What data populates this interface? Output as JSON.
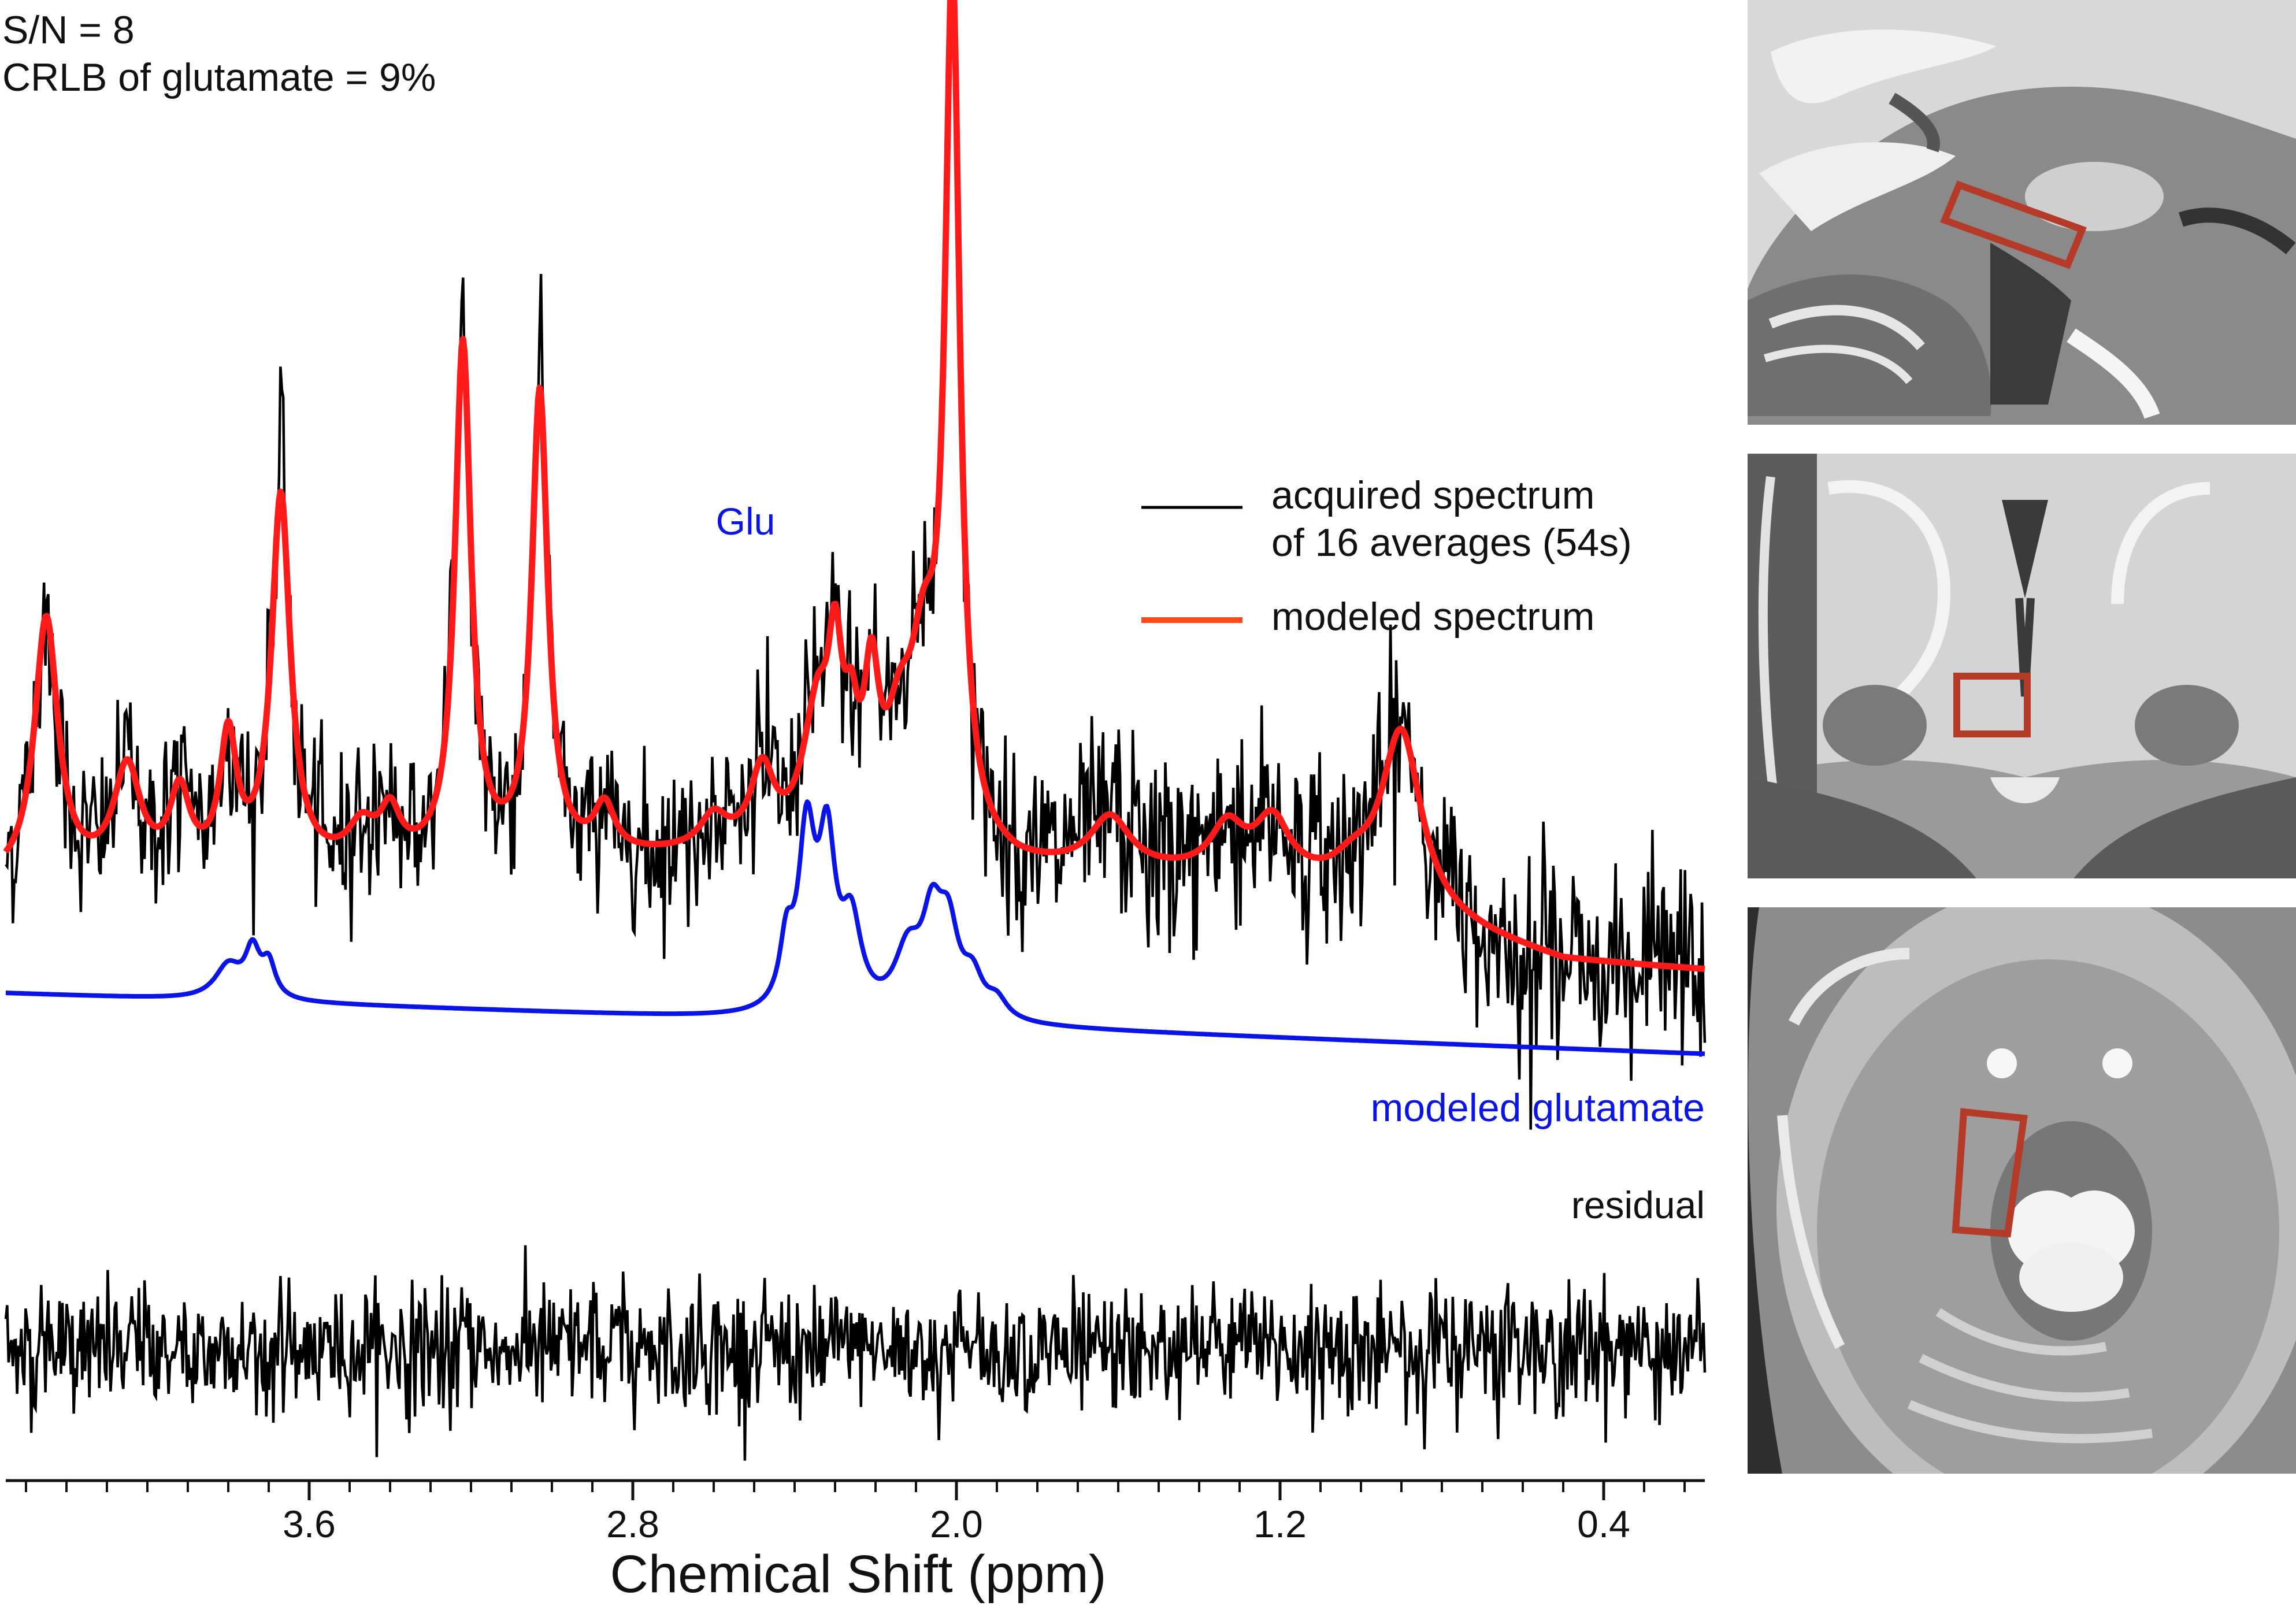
{
  "stats": {
    "sn": "S/N = 8",
    "crlb": "CRLB of glutamate = 9%"
  },
  "colors": {
    "acquired": "#000000",
    "modeled": "#ff1a1a",
    "modeled_legend": "#ff4a1a",
    "glutamate": "#0a14e6",
    "residual": "#000000",
    "voxel": "#b63a28"
  },
  "chart_data": {
    "type": "line",
    "title": "",
    "xlabel": "Chemical Shift (ppm)",
    "ylabel": "",
    "xlim": [
      4.35,
      0.15
    ],
    "x_reversed": true,
    "x_ticks": [
      3.6,
      2.8,
      2.0,
      1.2,
      0.4
    ],
    "x_tick_labels": [
      "3.6",
      "2.8",
      "2.0",
      "1.2",
      "0.4"
    ],
    "x_minor_tick_step": 0.1,
    "grid": false,
    "peak_label": "Glu",
    "legend": {
      "position": "top-right",
      "entries": [
        {
          "name": "acquired spectrum",
          "line1": "acquired spectrum",
          "line2": "of 16 averages (54s)",
          "series": "acquired"
        },
        {
          "name": "modeled spectrum",
          "line1": "modeled spectrum",
          "series": "modeled"
        }
      ]
    },
    "series_labels": {
      "glutamate": "modeled glutamate",
      "residual": "residual"
    },
    "series": [
      {
        "name": "modeled spectrum",
        "key": "modeled",
        "baseline": [
          [
            4.35,
            1.5
          ],
          [
            2.1,
            2.1
          ],
          [
            1.85,
            1.7
          ],
          [
            1.2,
            1.55
          ],
          [
            0.5,
            0.15
          ],
          [
            0.15,
            0.0
          ]
        ],
        "peaks": [
          {
            "ppm": 4.25,
            "amp": 4.5,
            "width": 0.035
          },
          {
            "ppm": 4.05,
            "amp": 1.8,
            "width": 0.04
          },
          {
            "ppm": 3.92,
            "amp": 1.3,
            "width": 0.03
          },
          {
            "ppm": 3.8,
            "amp": 2.2,
            "width": 0.025
          },
          {
            "ppm": 3.67,
            "amp": 6.4,
            "width": 0.028
          },
          {
            "ppm": 3.47,
            "amp": 0.6,
            "width": 0.04
          },
          {
            "ppm": 3.4,
            "amp": 0.8,
            "width": 0.03
          },
          {
            "ppm": 3.22,
            "amp": 8.9,
            "width": 0.024
          },
          {
            "ppm": 3.03,
            "amp": 8.0,
            "width": 0.024
          },
          {
            "ppm": 2.87,
            "amp": 0.8,
            "width": 0.03
          },
          {
            "ppm": 2.6,
            "amp": 0.55,
            "width": 0.04
          },
          {
            "ppm": 2.48,
            "amp": 1.3,
            "width": 0.035
          },
          {
            "ppm": 2.36,
            "amp": 0.9,
            "width": 0.04
          },
          {
            "ppm": 2.34,
            "amp": 1.3,
            "width": 0.03
          },
          {
            "ppm": 2.3,
            "amp": 2.8,
            "width": 0.022
          },
          {
            "ppm": 2.26,
            "amp": 1.4,
            "width": 0.02
          },
          {
            "ppm": 2.21,
            "amp": 2.4,
            "width": 0.022
          },
          {
            "ppm": 2.14,
            "amp": 1.5,
            "width": 0.04
          },
          {
            "ppm": 2.08,
            "amp": 2.6,
            "width": 0.04
          },
          {
            "ppm": 2.01,
            "amp": 14.6,
            "width": 0.022
          },
          {
            "ppm": 1.62,
            "amp": 0.9,
            "width": 0.06
          },
          {
            "ppm": 1.33,
            "amp": 0.8,
            "width": 0.05
          },
          {
            "ppm": 1.22,
            "amp": 0.9,
            "width": 0.05
          },
          {
            "ppm": 1.02,
            "amp": 0.4,
            "width": 0.06
          },
          {
            "ppm": 0.9,
            "amp": 3.1,
            "width": 0.06
          }
        ]
      },
      {
        "name": "modeled glutamate",
        "key": "glutamate",
        "baseline": [
          [
            4.35,
            0.25
          ],
          [
            2.65,
            -0.15
          ],
          [
            1.95,
            -0.3
          ],
          [
            0.15,
            -0.75
          ]
        ],
        "peaks": [
          {
            "ppm": 3.8,
            "amp": 0.55,
            "width": 0.04
          },
          {
            "ppm": 3.74,
            "amp": 0.75,
            "width": 0.022
          },
          {
            "ppm": 3.7,
            "amp": 0.55,
            "width": 0.02
          },
          {
            "ppm": 2.42,
            "amp": 1.0,
            "width": 0.02
          },
          {
            "ppm": 2.37,
            "amp": 2.8,
            "width": 0.025
          },
          {
            "ppm": 2.32,
            "amp": 2.6,
            "width": 0.025
          },
          {
            "ppm": 2.26,
            "amp": 1.4,
            "width": 0.03
          },
          {
            "ppm": 2.12,
            "amp": 1.0,
            "width": 0.04
          },
          {
            "ppm": 2.06,
            "amp": 1.4,
            "width": 0.03
          },
          {
            "ppm": 2.02,
            "amp": 1.3,
            "width": 0.03
          },
          {
            "ppm": 1.96,
            "amp": 0.6,
            "width": 0.03
          },
          {
            "ppm": 1.9,
            "amp": 0.3,
            "width": 0.03
          }
        ]
      },
      {
        "name": "acquired spectrum of 16 averages (54s)",
        "key": "acquired",
        "derived_from": "modeled spectrum + noise",
        "noise_sd": 0.7,
        "noise_sd_after_1.8ppm": 0.85,
        "spikes": [
          {
            "ppm": 2.01,
            "extra": 1.9
          },
          {
            "ppm": 3.67,
            "extra": 1.6
          },
          {
            "ppm": 3.22,
            "extra": 0.6
          },
          {
            "ppm": 3.03,
            "extra": 1.4
          }
        ]
      },
      {
        "name": "residual",
        "key": "residual",
        "noise_sd": 1.0,
        "y_range": [
          -3.5,
          3.5
        ]
      }
    ]
  },
  "mri_panels": [
    {
      "view": "sagittal"
    },
    {
      "view": "coronal"
    },
    {
      "view": "axial"
    }
  ]
}
